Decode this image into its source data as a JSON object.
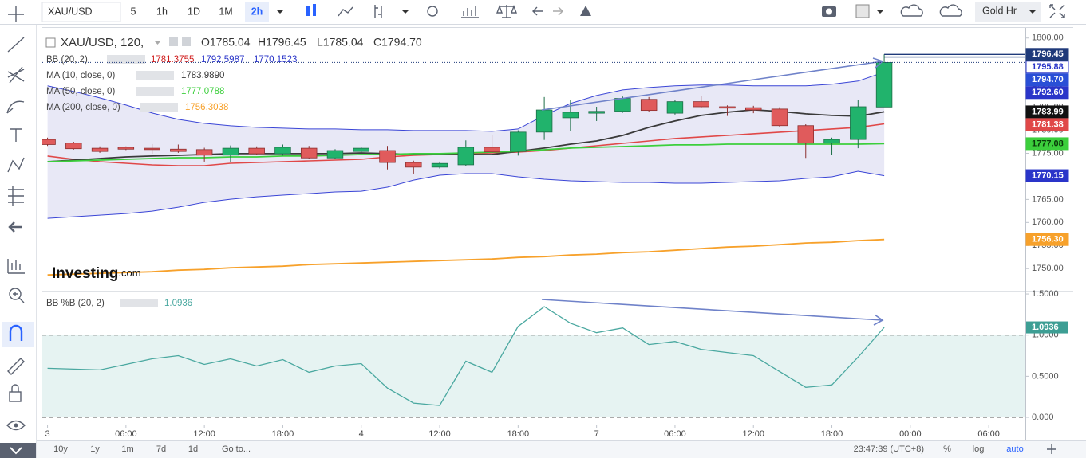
{
  "toolbar": {
    "symbol": "XAU/USD",
    "intervals": [
      "5",
      "1h",
      "1D",
      "1M",
      "2h"
    ],
    "active": 4,
    "account": "Gold Hr"
  },
  "bottom_bar": {
    "ranges": [
      "10y",
      "1y",
      "1m",
      "7d",
      "1d"
    ],
    "goto": "Go to...",
    "clock": "23:47:39 (UTC+8)",
    "options": [
      "%",
      "log",
      "auto"
    ],
    "active_option": 2
  },
  "watermark": {
    "brand": "Investing",
    "suffix": ".com"
  },
  "chart_data": [
    {
      "type": "candlestick",
      "symbol_label": "XAU/USD, 120,",
      "ohlc_labels": [
        "O1785.04",
        "H1796.45",
        "L1785.04",
        "C1794.70"
      ],
      "x": [
        0,
        1,
        2,
        3,
        4,
        5,
        6,
        7,
        8,
        9,
        10,
        11,
        12,
        13,
        14,
        15,
        16,
        17,
        18,
        19,
        20,
        21,
        22,
        23,
        24,
        25,
        26,
        27,
        28,
        29,
        30,
        31,
        32
      ],
      "open": [
        1778.0,
        1777.2,
        1776.1,
        1776.3,
        1776.1,
        1775.9,
        1775.8,
        1774.6,
        1776.1,
        1774.9,
        1776.1,
        1774.0,
        1775.4,
        1775.6,
        1773.0,
        1772.0,
        1772.5,
        1776.3,
        1775.4,
        1779.6,
        1782.7,
        1783.7,
        1784.1,
        1786.7,
        1783.7,
        1786.2,
        1785.1,
        1784.9,
        1784.6,
        1781.0,
        1777.2,
        1778.0,
        1785.04
      ],
      "high": [
        1778.4,
        1777.5,
        1776.5,
        1776.5,
        1777.0,
        1776.9,
        1776.2,
        1776.7,
        1776.5,
        1776.9,
        1776.6,
        1775.9,
        1776.4,
        1776.6,
        1773.4,
        1773.2,
        1777.8,
        1778.9,
        1780.0,
        1787.2,
        1786.6,
        1785.1,
        1787.3,
        1787.2,
        1786.6,
        1787.4,
        1785.4,
        1785.3,
        1785.0,
        1781.3,
        1778.4,
        1786.5,
        1796.45
      ],
      "low": [
        1776.6,
        1775.8,
        1775.1,
        1775.7,
        1774.9,
        1775.1,
        1773.2,
        1773.0,
        1774.6,
        1774.5,
        1773.8,
        1773.7,
        1775.1,
        1771.5,
        1770.6,
        1771.7,
        1772.2,
        1775.0,
        1774.5,
        1777.9,
        1779.9,
        1782.0,
        1783.8,
        1784.0,
        1783.4,
        1784.8,
        1783.1,
        1783.7,
        1780.6,
        1774.0,
        1774.7,
        1776.1,
        1785.04
      ],
      "close": [
        1776.9,
        1776.0,
        1775.4,
        1775.9,
        1775.8,
        1775.4,
        1774.6,
        1776.1,
        1774.9,
        1776.3,
        1774.0,
        1775.6,
        1776.1,
        1773.0,
        1772.0,
        1772.8,
        1776.3,
        1775.3,
        1779.6,
        1784.4,
        1783.9,
        1784.1,
        1786.9,
        1784.3,
        1786.2,
        1785.1,
        1784.8,
        1784.4,
        1781.0,
        1777.2,
        1778.0,
        1785.1,
        1794.7
      ],
      "up_color": "#21b36c",
      "up_border": "#1c6e47",
      "down_color": "#e05b5c",
      "down_border": "#8c2e2e",
      "bb": {
        "name": "BB (20, 2)",
        "legend_values": [
          1781.3755,
          1792.5987,
          1770.1523
        ],
        "legend_colors": [
          "#d01c1c",
          "#2a35c9",
          "#2a35c9"
        ],
        "basis": [
          1774.4,
          1773.7,
          1773.18,
          1772.84,
          1772.49,
          1772.32,
          1772.32,
          1772.84,
          1773.01,
          1773.18,
          1773.36,
          1773.53,
          1773.7,
          1774.22,
          1774.57,
          1774.74,
          1774.92,
          1775.09,
          1775.26,
          1775.61,
          1776.13,
          1776.64,
          1777.16,
          1777.68,
          1778.2,
          1778.55,
          1778.89,
          1779.24,
          1779.59,
          1779.93,
          1780.28,
          1780.62,
          1781.38
        ],
        "upper": [
          1789.62,
          1788.41,
          1787.02,
          1785.47,
          1783.74,
          1782.35,
          1781.49,
          1780.97,
          1780.62,
          1780.45,
          1780.28,
          1780.28,
          1780.1,
          1780.1,
          1779.93,
          1779.93,
          1779.93,
          1779.76,
          1780.28,
          1783.22,
          1785.81,
          1787.54,
          1788.75,
          1789.27,
          1789.62,
          1789.79,
          1789.79,
          1789.62,
          1789.62,
          1789.62,
          1789.97,
          1790.66,
          1792.6
        ],
        "lower": [
          1760.9,
          1761.25,
          1761.59,
          1761.94,
          1762.46,
          1763.32,
          1764.36,
          1765.05,
          1765.57,
          1765.92,
          1766.26,
          1766.61,
          1766.78,
          1767.65,
          1769.2,
          1770.24,
          1770.59,
          1770.59,
          1769.9,
          1769.38,
          1769.03,
          1768.86,
          1768.69,
          1768.69,
          1768.51,
          1768.51,
          1768.69,
          1768.86,
          1769.03,
          1769.55,
          1769.9,
          1771.11,
          1770.15
        ],
        "basis_color": "#e04848",
        "band_color": "#3a45d6",
        "fill": "#e4e4f4"
      },
      "series": [
        {
          "name": "MA (10, close, 0)",
          "color": "#3a3a3a",
          "legend_value": {
            "value": 1783.989,
            "label": "1783.9890"
          },
          "values": [
            1773.18,
            1773.53,
            1773.88,
            1774.22,
            1774.4,
            1774.57,
            1774.74,
            1774.92,
            1774.92,
            1774.92,
            1774.92,
            1774.92,
            1775.09,
            1774.92,
            1774.74,
            1774.74,
            1774.74,
            1774.74,
            1775.43,
            1776.13,
            1776.99,
            1777.68,
            1778.89,
            1780.62,
            1782.01,
            1783.22,
            1783.91,
            1784.43,
            1784.08,
            1783.56,
            1783.22,
            1783.05,
            1783.99
          ]
        },
        {
          "name": "MA (50, close, 0)",
          "color": "#3ccf3c",
          "legend_value": 1777.0788,
          "values": [
            1773.18,
            1773.36,
            1773.53,
            1773.7,
            1773.88,
            1774.05,
            1774.05,
            1774.22,
            1774.22,
            1774.4,
            1774.4,
            1774.57,
            1774.74,
            1774.74,
            1774.92,
            1774.92,
            1775.09,
            1775.26,
            1775.43,
            1775.78,
            1776.13,
            1776.3,
            1776.47,
            1776.64,
            1776.82,
            1776.82,
            1776.99,
            1776.99,
            1776.99,
            1776.99,
            1776.99,
            1776.99,
            1777.08
          ]
        },
        {
          "name": "MA (200, close, 0)",
          "color": "#f7a12b",
          "legend_value": 1756.3038,
          "values": [
            1748.62,
            1748.79,
            1748.97,
            1749.14,
            1749.31,
            1749.66,
            1749.83,
            1750.18,
            1750.35,
            1750.52,
            1750.87,
            1751.04,
            1751.21,
            1751.39,
            1751.56,
            1751.73,
            1751.91,
            1752.08,
            1752.42,
            1752.6,
            1752.94,
            1753.12,
            1753.46,
            1753.64,
            1753.98,
            1754.33,
            1754.67,
            1754.85,
            1755.19,
            1755.54,
            1755.71,
            1756.06,
            1756.3
          ]
        }
      ],
      "price_tags": [
        {
          "value": 1796.45,
          "bg": "#1f3a7a",
          "fg": "#ffffff",
          "hline": true
        },
        {
          "value": 1795.88,
          "bg": "#ffffff",
          "fg": "#2a35c9",
          "hline": true
        },
        {
          "value": 1794.7,
          "label": "1794.70",
          "bg": "#2a4fd6",
          "fg": "#ffffff",
          "dotted": true
        },
        {
          "value": 1792.6,
          "label": "1792.60",
          "bg": "#2a35c9",
          "fg": "#ffffff"
        },
        {
          "value": 1783.99,
          "bg": "#111111",
          "fg": "#ffffff"
        },
        {
          "value": 1781.38,
          "bg": "#e04848",
          "fg": "#ffffff"
        },
        {
          "value": 1777.08,
          "bg": "#3ccf3c",
          "fg": "#0a3a0a"
        },
        {
          "value": 1770.15,
          "bg": "#2a35c9",
          "fg": "#ffffff"
        },
        {
          "value": 1756.3,
          "label": "1756.30",
          "bg": "#f7a12b",
          "fg": "#ffffff"
        }
      ],
      "xlim": [
        -0.2,
        37.4
      ],
      "ylim": [
        1745.2,
        1802.2
      ],
      "yticks": [
        {
          "value": 1750,
          "label": "1750.00"
        },
        {
          "value": 1755,
          "label": "1755.00"
        },
        {
          "value": 1760,
          "label": "1760.00"
        },
        {
          "value": 1765,
          "label": "1765.00"
        },
        {
          "value": 1770,
          "label": "1770.00"
        },
        {
          "value": 1775,
          "label": "1775.00"
        },
        {
          "value": 1780,
          "label": "1780.00"
        },
        {
          "value": 1785,
          "label": "1785.00"
        },
        {
          "value": 1790,
          "label": "1790.00"
        },
        {
          "value": 1795,
          "label": "1795.00"
        },
        {
          "value": 1800,
          "label": "1800.00"
        }
      ],
      "xticks": [
        {
          "value": 0,
          "label": "3"
        },
        {
          "value": 3,
          "label": "06:00"
        },
        {
          "value": 6,
          "label": "12:00"
        },
        {
          "value": 9,
          "label": "18:00"
        },
        {
          "value": 12,
          "label": "4"
        },
        {
          "value": 15,
          "label": "12:00"
        },
        {
          "value": 18,
          "label": "18:00"
        },
        {
          "value": 21,
          "label": "7"
        },
        {
          "value": 24,
          "label": "06:00"
        },
        {
          "value": 27,
          "label": "12:00"
        },
        {
          "value": 30,
          "label": "18:00"
        },
        {
          "value": 33,
          "label": "00:00"
        },
        {
          "value": 36,
          "label": "06:00"
        }
      ],
      "grid": false
    },
    {
      "type": "line",
      "name": "BB %B (20, 2)",
      "legend_value": 1.0936,
      "color": "#4aa8a0",
      "x": [
        0,
        1,
        2,
        3,
        4,
        5,
        6,
        7,
        8,
        9,
        10,
        11,
        12,
        13,
        14,
        15,
        16,
        17,
        18,
        19,
        20,
        21,
        22,
        23,
        24,
        25,
        26,
        27,
        28,
        29,
        30,
        31,
        32
      ],
      "values": [
        0.596,
        0.587,
        0.577,
        0.644,
        0.712,
        0.75,
        0.644,
        0.712,
        0.625,
        0.702,
        0.548,
        0.625,
        0.654,
        0.356,
        0.173,
        0.144,
        0.683,
        0.548,
        1.106,
        1.346,
        1.144,
        1.029,
        1.087,
        0.885,
        0.923,
        0.827,
        0.788,
        0.75,
        0.558,
        0.365,
        0.394,
        0.731,
        1.0936
      ],
      "band_lines": [
        1,
        0
      ],
      "band_fill": "#e6f3f2",
      "tag": {
        "value": 1.0936,
        "bg": "#3d9e94",
        "fg": "#ffffff"
      },
      "xlim": [
        -0.2,
        37.4
      ],
      "ylim": [
        -0.087,
        1.52
      ],
      "yticks": [
        {
          "value": 0,
          "label": "0.000"
        },
        {
          "value": 0.5,
          "label": "0.5000"
        },
        {
          "value": 1,
          "label": "1.0000"
        },
        {
          "value": 1.5,
          "label": "1.5000"
        }
      ],
      "grid": false
    }
  ]
}
